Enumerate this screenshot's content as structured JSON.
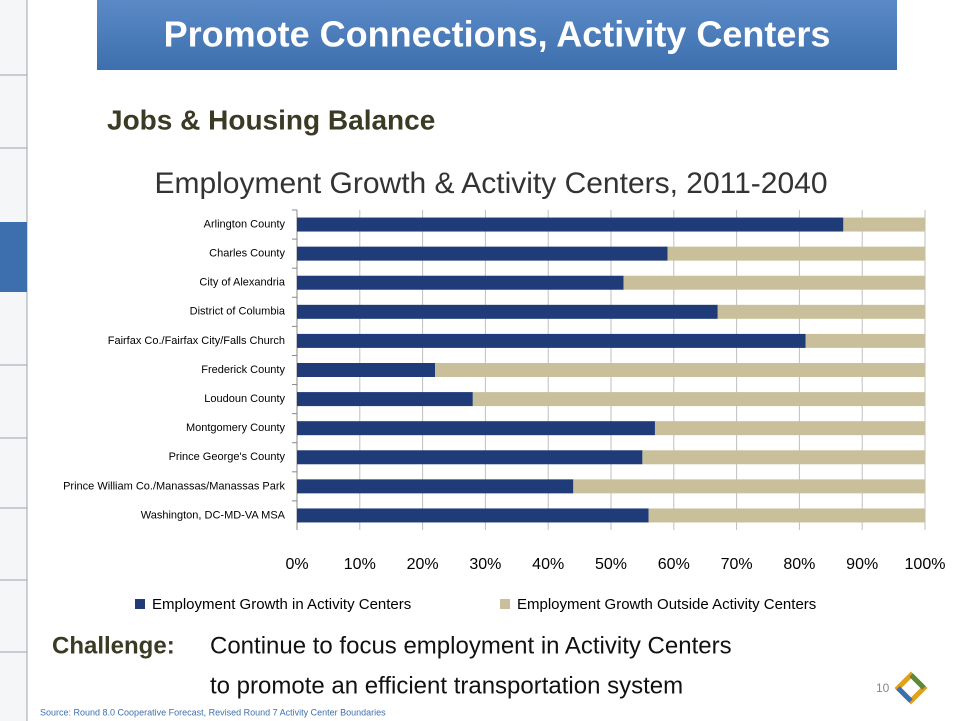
{
  "slide_title": "Promote Connections, Activity Centers",
  "section_title": "Jobs & Housing Balance",
  "chart_data": {
    "type": "stacked-barh",
    "title": "Employment Growth & Activity Centers, 2011-2040",
    "categories": [
      "Arlington County",
      "Charles County",
      "City of Alexandria",
      "District of Columbia",
      "Fairfax Co./Fairfax City/Falls Church",
      "Frederick County",
      "Loudoun County",
      "Montgomery County",
      "Prince George's County",
      "Prince William Co./Manassas/Manassas Park",
      "Washington, DC-MD-VA MSA"
    ],
    "series": [
      {
        "name": "Employment Growth in Activity Centers",
        "color": "#1f3c78",
        "values": [
          87,
          59,
          52,
          67,
          81,
          22,
          28,
          57,
          55,
          44,
          56
        ]
      },
      {
        "name": "Employment Growth Outside Activity Centers",
        "color": "#c9c09b",
        "values": [
          13,
          41,
          48,
          33,
          19,
          78,
          72,
          43,
          45,
          56,
          44
        ]
      }
    ],
    "xlim": [
      0,
      100
    ],
    "xticks": [
      {
        "value": 0,
        "label": "0%"
      },
      {
        "value": 10,
        "label": "10%"
      },
      {
        "value": 20,
        "label": "20%"
      },
      {
        "value": 30,
        "label": "30%"
      },
      {
        "value": 40,
        "label": "40%"
      },
      {
        "value": 50,
        "label": "50%"
      },
      {
        "value": 60,
        "label": "60%"
      },
      {
        "value": 70,
        "label": "70%"
      },
      {
        "value": 80,
        "label": "80%"
      },
      {
        "value": 90,
        "label": "90%"
      },
      {
        "value": 100,
        "label": "100%"
      }
    ],
    "grid": true,
    "legend": "bottom"
  },
  "challenge": {
    "label": "Challenge:",
    "lines": [
      "Continue to focus employment in Activity Centers",
      "to promote an efficient transportation system"
    ]
  },
  "page_number": "10",
  "source": "Source: Round 8.0 Cooperative Forecast, Revised Round 7 Activity Center Boundaries"
}
